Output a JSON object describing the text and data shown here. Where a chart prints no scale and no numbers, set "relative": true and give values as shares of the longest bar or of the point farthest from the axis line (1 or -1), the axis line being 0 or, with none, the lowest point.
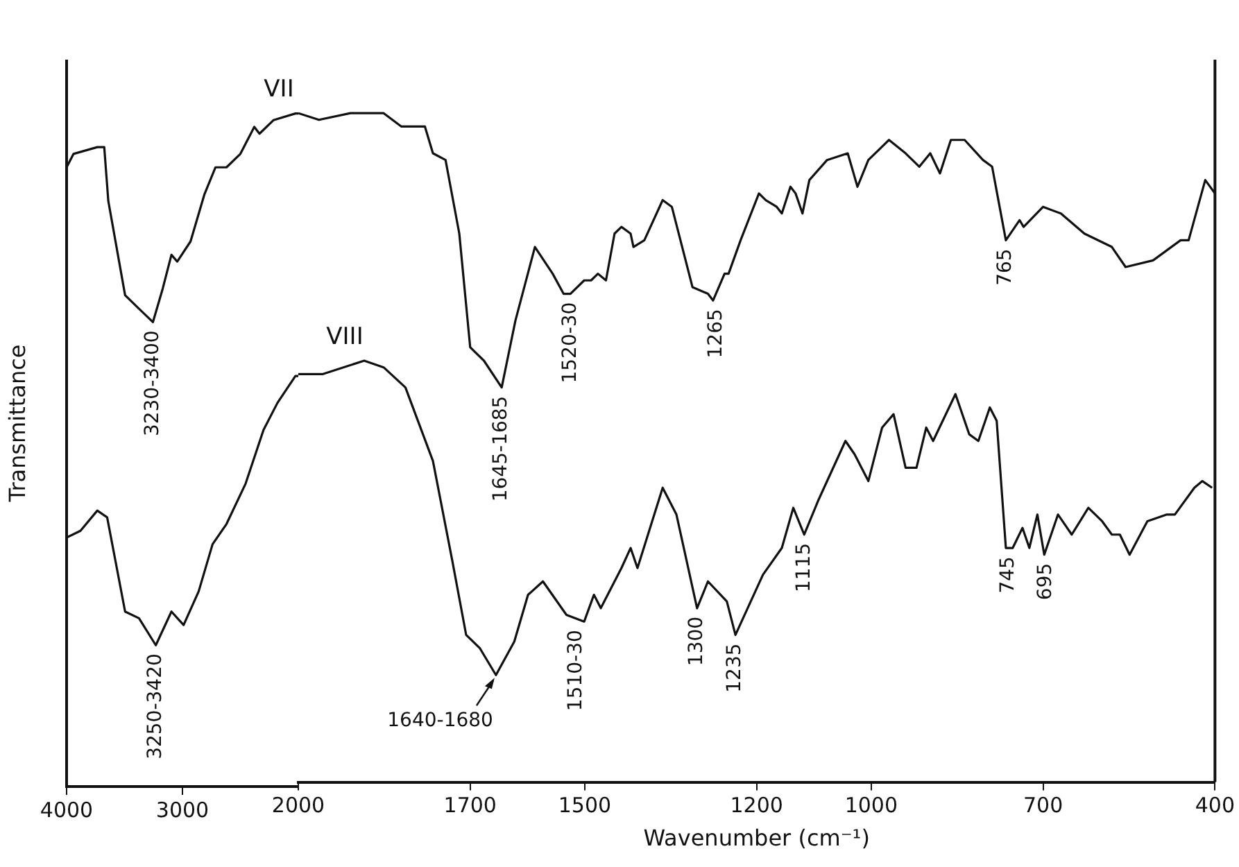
{
  "chart_data": [
    {
      "type": "line",
      "relative": true,
      "ylabel": "Transmittance",
      "xlim": [
        4000,
        2000
      ],
      "xticks": [
        4000,
        3000
      ],
      "legend": false,
      "marker": "none",
      "line_style": "solid",
      "series": [
        {
          "color": "#111111",
          "x": [
            4000,
            3940,
            3735,
            3675,
            3640,
            3495,
            3375,
            3255,
            3170,
            3095,
            3045,
            2930,
            2810,
            2715,
            2620,
            2500,
            2380,
            2335,
            2215,
            2025,
            2000
          ],
          "values": [
            0.92,
            0.94,
            0.95,
            0.95,
            0.87,
            0.73,
            0.71,
            0.69,
            0.74,
            0.79,
            0.78,
            0.81,
            0.88,
            0.92,
            0.92,
            0.94,
            0.98,
            0.97,
            0.99,
            1.0,
            1.0
          ]
        },
        {
          "color": "#111111",
          "x": [
            4000,
            3880,
            3735,
            3650,
            3495,
            3375,
            3230,
            3095,
            2990,
            2860,
            2740,
            2620,
            2455,
            2300,
            2180,
            2025,
            2000
          ],
          "values": [
            0.37,
            0.38,
            0.41,
            0.4,
            0.26,
            0.25,
            0.21,
            0.26,
            0.24,
            0.29,
            0.36,
            0.39,
            0.45,
            0.53,
            0.57,
            0.61,
            0.61
          ]
        }
      ],
      "annotations": [
        {
          "text": "3230-3400",
          "x": 3255,
          "y": 0.69
        },
        {
          "text": "3250-3420",
          "x": 3230,
          "y": 0.21
        }
      ]
    },
    {
      "type": "line",
      "relative": true,
      "xlabel": "Wavenumber (cm⁻¹)",
      "xlim": [
        2000,
        400
      ],
      "xticks": [
        2000,
        1700,
        1500,
        1200,
        1000,
        700,
        400
      ],
      "legend": false,
      "marker": "none",
      "line_style": "solid",
      "series": [
        {
          "name": "VII",
          "color": "#111111",
          "x": [
            2000,
            1964,
            1909,
            1851,
            1820,
            1779,
            1765,
            1743,
            1719,
            1700,
            1676,
            1645,
            1621,
            1587,
            1556,
            1537,
            1525,
            1501,
            1489,
            1477,
            1463,
            1448,
            1436,
            1420,
            1415,
            1396,
            1364,
            1348,
            1312,
            1285,
            1276,
            1256,
            1249,
            1228,
            1196,
            1184,
            1165,
            1156,
            1141,
            1132,
            1120,
            1108,
            1077,
            1041,
            1024,
            1005,
            969,
            940,
            916,
            897,
            880,
            861,
            837,
            805,
            789,
            765,
            741,
            734,
            700,
            669,
            628,
            580,
            556,
            508,
            460,
            446,
            417,
            400
          ],
          "values": [
            1.0,
            0.99,
            1.0,
            1.0,
            0.98,
            0.98,
            0.94,
            0.93,
            0.82,
            0.65,
            0.63,
            0.59,
            0.69,
            0.8,
            0.76,
            0.73,
            0.73,
            0.75,
            0.75,
            0.76,
            0.75,
            0.82,
            0.83,
            0.82,
            0.8,
            0.81,
            0.87,
            0.86,
            0.74,
            0.73,
            0.72,
            0.76,
            0.76,
            0.81,
            0.88,
            0.87,
            0.86,
            0.85,
            0.89,
            0.88,
            0.85,
            0.9,
            0.93,
            0.94,
            0.89,
            0.93,
            0.96,
            0.94,
            0.92,
            0.94,
            0.91,
            0.96,
            0.96,
            0.93,
            0.92,
            0.81,
            0.84,
            0.83,
            0.86,
            0.85,
            0.82,
            0.8,
            0.77,
            0.78,
            0.81,
            0.81,
            0.9,
            0.88
          ]
        },
        {
          "name": "VIII",
          "color": "#111111",
          "x": [
            2000,
            1957,
            1885,
            1851,
            1813,
            1765,
            1731,
            1707,
            1683,
            1655,
            1623,
            1599,
            1573,
            1532,
            1501,
            1484,
            1472,
            1436,
            1420,
            1408,
            1364,
            1340,
            1304,
            1285,
            1252,
            1237,
            1189,
            1156,
            1136,
            1117,
            1093,
            1045,
            1029,
            1005,
            981,
            961,
            940,
            921,
            904,
            892,
            853,
            829,
            813,
            793,
            781,
            765,
            753,
            736,
            724,
            710,
            698,
            674,
            650,
            621,
            597,
            580,
            566,
            549,
            518,
            484,
            470,
            436,
            422,
            405
          ],
          "values": [
            0.61,
            0.61,
            0.63,
            0.62,
            0.59,
            0.48,
            0.33,
            0.22,
            0.2,
            0.16,
            0.21,
            0.28,
            0.3,
            0.25,
            0.24,
            0.28,
            0.26,
            0.32,
            0.35,
            0.32,
            0.44,
            0.4,
            0.26,
            0.3,
            0.27,
            0.22,
            0.31,
            0.35,
            0.41,
            0.37,
            0.42,
            0.51,
            0.49,
            0.45,
            0.53,
            0.55,
            0.47,
            0.47,
            0.53,
            0.51,
            0.58,
            0.52,
            0.51,
            0.56,
            0.54,
            0.35,
            0.35,
            0.38,
            0.35,
            0.4,
            0.34,
            0.4,
            0.37,
            0.41,
            0.39,
            0.37,
            0.37,
            0.34,
            0.39,
            0.4,
            0.4,
            0.44,
            0.45,
            0.44
          ]
        }
      ],
      "annotations": [
        {
          "text": "1645-1685",
          "x": 1645,
          "y": 0.59
        },
        {
          "text": "1520-30",
          "x": 1525,
          "y": 0.73
        },
        {
          "text": "1265",
          "x": 1270,
          "y": 0.72
        },
        {
          "text": "765",
          "x": 765,
          "y": 0.81
        },
        {
          "text": "1640-1680",
          "x": 1655,
          "y": 0.16
        },
        {
          "text": "1510-30",
          "x": 1515,
          "y": 0.24
        },
        {
          "text": "1300",
          "x": 1304,
          "y": 0.26
        },
        {
          "text": "1235",
          "x": 1237,
          "y": 0.22
        },
        {
          "text": "1115",
          "x": 1117,
          "y": 0.37
        },
        {
          "text": "745",
          "x": 760,
          "y": 0.35
        },
        {
          "text": "695",
          "x": 695,
          "y": 0.34
        }
      ]
    }
  ]
}
